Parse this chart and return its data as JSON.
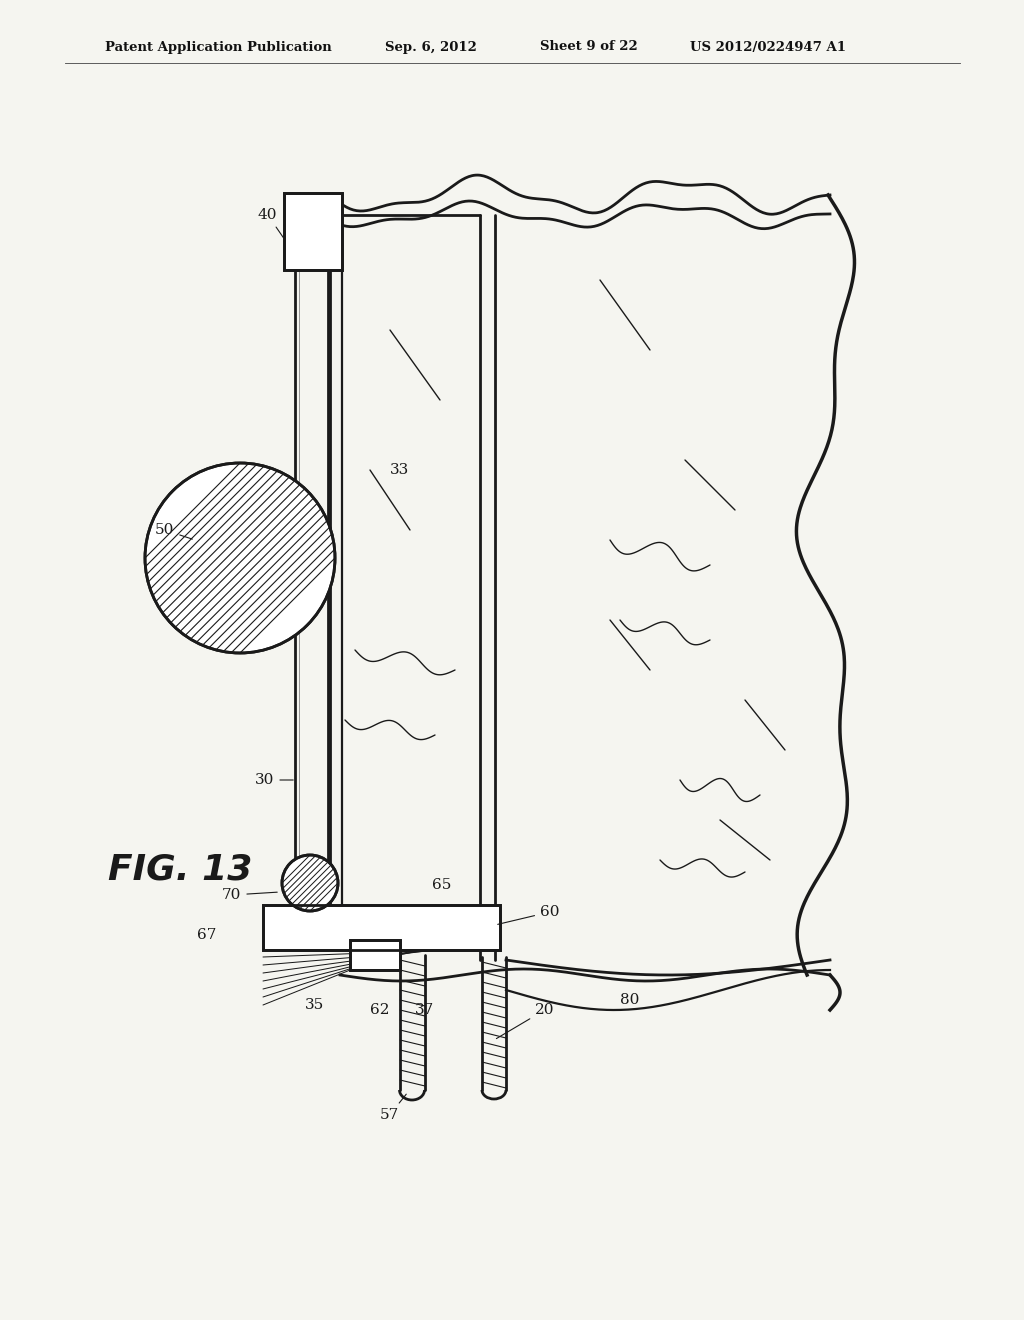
{
  "title_line1": "Patent Application Publication",
  "title_line2": "Sep. 6, 2012",
  "title_line3": "Sheet 9 of 22",
  "title_line4": "US 2012/0224947 A1",
  "fig_label": "FIG. 13",
  "background_color": "#f5f5f0",
  "line_color": "#1a1a1a",
  "lw_main": 2.0,
  "lw_thin": 1.0,
  "lw_hatch": 0.8,
  "label_fontsize": 11
}
